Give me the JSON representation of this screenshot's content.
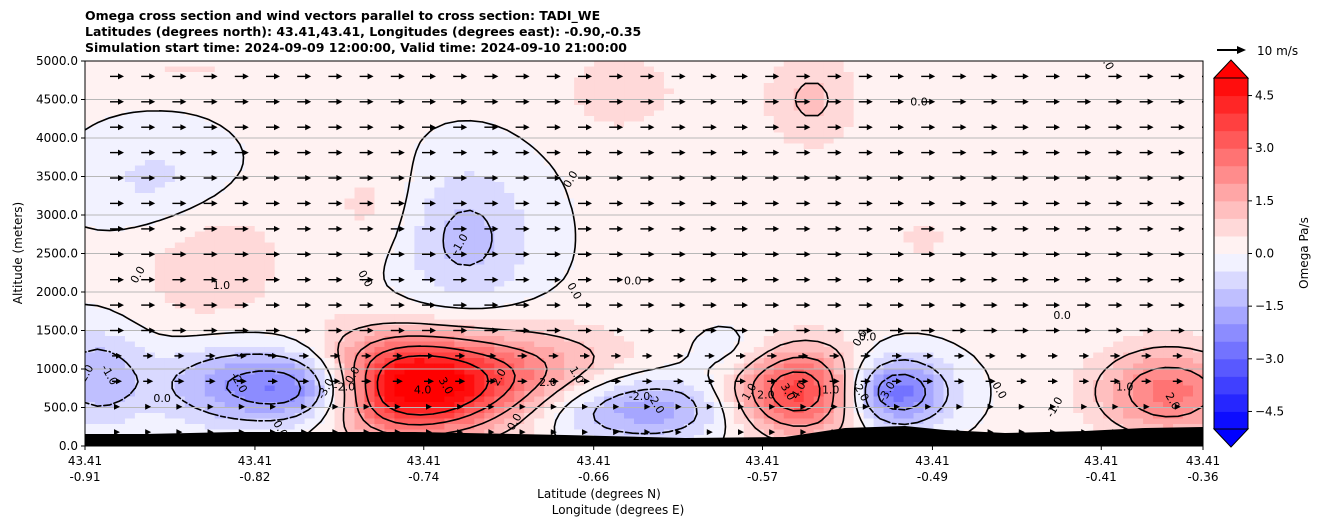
{
  "chart_data": {
    "type": "contour",
    "title_lines": [
      "Omega cross section and wind vectors parallel to cross section: TADI_WE",
      "Latitudes (degrees north): 43.41,43.41, Longitudes (degrees east): -0.90,-0.35",
      "Simulation start time: 2024-09-09 12:00:00, Valid time: 2024-09-10 21:00:00"
    ],
    "ylabel": "Altitude (meters)",
    "xlabel_lat": "Latitude (degrees N)",
    "xlabel_lon": "Longitude (degrees E)",
    "ylim": [
      0,
      5000
    ],
    "y_ticks": [
      "0.0",
      "500.0",
      "1000.0",
      "1500.0",
      "2000.0",
      "2500.0",
      "3000.0",
      "3500.0",
      "4000.0",
      "4500.0",
      "5000.0"
    ],
    "x_ticks": [
      {
        "lat": "43.41",
        "lon": "-0.91"
      },
      {
        "lat": "43.41",
        "lon": "-0.82"
      },
      {
        "lat": "43.41",
        "lon": "-0.74"
      },
      {
        "lat": "43.41",
        "lon": "-0.66"
      },
      {
        "lat": "43.41",
        "lon": "-0.57"
      },
      {
        "lat": "43.41",
        "lon": "-0.49"
      },
      {
        "lat": "43.41",
        "lon": "-0.41"
      },
      {
        "lat": "43.41",
        "lon": "-0.36"
      }
    ],
    "x_tick_fraction": [
      0,
      0.152,
      0.303,
      0.455,
      0.606,
      0.758,
      0.909,
      1.0
    ],
    "colorbar": {
      "label": "Omega Pa/s",
      "range": [
        -5,
        5
      ],
      "ticks": [
        "4.5",
        "3.0",
        "1.5",
        "0.0",
        "−1.5",
        "−3.0",
        "−4.5"
      ],
      "tick_values": [
        4.5,
        3.0,
        1.5,
        0.0,
        -1.5,
        -3.0,
        -4.5
      ],
      "extend": "both"
    },
    "quiver_key": "10 m/s",
    "features": [
      {
        "xf": 0.27,
        "alt": 750,
        "value": 4.5,
        "sx": 0.06,
        "sa": 420
      },
      {
        "xf": 0.35,
        "alt": 850,
        "value": 2.8,
        "sx": 0.09,
        "sa": 450
      },
      {
        "xf": 0.64,
        "alt": 700,
        "value": 4.0,
        "sx": 0.045,
        "sa": 400
      },
      {
        "xf": 0.97,
        "alt": 700,
        "value": 2.6,
        "sx": 0.045,
        "sa": 400
      },
      {
        "xf": 0.21,
        "alt": 750,
        "value": -4.2,
        "sx": 0.045,
        "sa": 350
      },
      {
        "xf": 0.13,
        "alt": 800,
        "value": -1.8,
        "sx": 0.05,
        "sa": 380
      },
      {
        "xf": 0.01,
        "alt": 900,
        "value": -1.5,
        "sx": 0.03,
        "sa": 450
      },
      {
        "xf": 0.49,
        "alt": 500,
        "value": -2.4,
        "sx": 0.07,
        "sa": 320
      },
      {
        "xf": 0.72,
        "alt": 700,
        "value": -3.5,
        "sx": 0.035,
        "sa": 320
      },
      {
        "xf": 0.34,
        "alt": 2700,
        "value": -1.3,
        "sx": 0.045,
        "sa": 700
      },
      {
        "xf": 0.07,
        "alt": 3400,
        "value": -0.9,
        "sx": 0.05,
        "sa": 500
      },
      {
        "xf": 0.11,
        "alt": 2500,
        "value": 0.8,
        "sx": 0.05,
        "sa": 700
      },
      {
        "xf": 0.26,
        "alt": 3100,
        "value": 0.6,
        "sx": 0.03,
        "sa": 500
      },
      {
        "xf": 0.48,
        "alt": 4600,
        "value": 0.8,
        "sx": 0.035,
        "sa": 350
      },
      {
        "xf": 0.65,
        "alt": 4500,
        "value": 1.0,
        "sx": 0.03,
        "sa": 450
      },
      {
        "xf": 0.09,
        "alt": 4900,
        "value": 0.4,
        "sx": 0.08,
        "sa": 200
      },
      {
        "xf": 0.58,
        "alt": 1200,
        "value": -0.8,
        "sx": 0.03,
        "sa": 250
      },
      {
        "xf": 0.75,
        "alt": 2700,
        "value": 0.6,
        "sx": 0.015,
        "sa": 200
      }
    ],
    "contour_labels": [
      {
        "text": "0.0",
        "xf": 0.05,
        "alt": 2200
      },
      {
        "text": "1.0",
        "xf": 0.122,
        "alt": 2040
      },
      {
        "text": "0.0",
        "xf": 0.248,
        "alt": 2150
      },
      {
        "text": "-1.0",
        "xf": 0.338,
        "alt": 2600
      },
      {
        "text": "0.0",
        "xf": 0.49,
        "alt": 2100
      },
      {
        "text": "0.0",
        "xf": 0.435,
        "alt": 1990
      },
      {
        "text": "0.0",
        "xf": 0.437,
        "alt": 3440
      },
      {
        "text": "0.0",
        "xf": 0.746,
        "alt": 4420
      },
      {
        "text": "0.0",
        "xf": 0.911,
        "alt": 4970
      },
      {
        "text": "0.0",
        "xf": 0.696,
        "alt": 1380
      },
      {
        "text": "0.0",
        "xf": 0.874,
        "alt": 1650
      },
      {
        "text": "-1.0",
        "xf": 0.019,
        "alt": 900
      },
      {
        "text": "-2.0",
        "xf": 0.003,
        "alt": 900
      },
      {
        "text": "0.0",
        "xf": 0.069,
        "alt": 570
      },
      {
        "text": "-2.0",
        "xf": 0.135,
        "alt": 800
      },
      {
        "text": "-3.0",
        "xf": 0.218,
        "alt": 720
      },
      {
        "text": "-2.0",
        "xf": 0.232,
        "alt": 720
      },
      {
        "text": "0.0",
        "xf": 0.172,
        "alt": 200
      },
      {
        "text": "0.0",
        "xf": 0.242,
        "alt": 900
      },
      {
        "text": "4.0",
        "xf": 0.302,
        "alt": 680
      },
      {
        "text": "3.0",
        "xf": 0.32,
        "alt": 760
      },
      {
        "text": "2.0",
        "xf": 0.373,
        "alt": 870
      },
      {
        "text": "2.0",
        "xf": 0.414,
        "alt": 780
      },
      {
        "text": "1.0",
        "xf": 0.437,
        "alt": 900
      },
      {
        "text": "0.0",
        "xf": 0.387,
        "alt": 290
      },
      {
        "text": "-2.0",
        "xf": 0.496,
        "alt": 600
      },
      {
        "text": "-2.0",
        "xf": 0.508,
        "alt": 530
      },
      {
        "text": "1.0",
        "xf": 0.597,
        "alt": 680
      },
      {
        "text": "2.0",
        "xf": 0.609,
        "alt": 620
      },
      {
        "text": "3.0",
        "xf": 0.626,
        "alt": 680
      },
      {
        "text": "4.0",
        "xf": 0.641,
        "alt": 700
      },
      {
        "text": "1.0",
        "xf": 0.667,
        "alt": 680
      },
      {
        "text": "-2.0",
        "xf": 0.691,
        "alt": 690
      },
      {
        "text": "-3.0",
        "xf": 0.72,
        "alt": 680
      },
      {
        "text": "0.0",
        "xf": 0.7,
        "alt": 1370
      },
      {
        "text": "0.0",
        "xf": 0.815,
        "alt": 700
      },
      {
        "text": "-1.0",
        "xf": 0.87,
        "alt": 480
      },
      {
        "text": "1.0",
        "xf": 0.93,
        "alt": 720
      },
      {
        "text": "2.0",
        "xf": 0.97,
        "alt": 560
      }
    ]
  }
}
